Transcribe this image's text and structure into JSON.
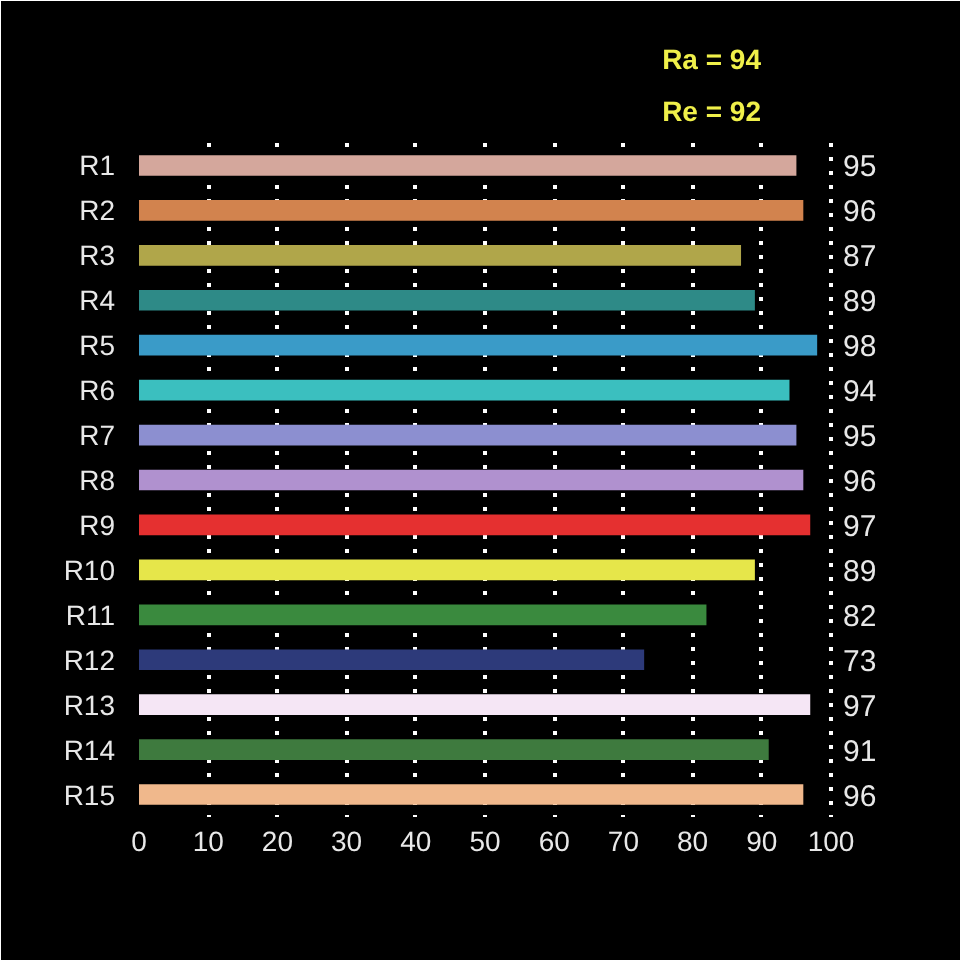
{
  "chart_data": {
    "type": "bar",
    "orientation": "horizontal",
    "categories": [
      "R1",
      "R2",
      "R3",
      "R4",
      "R5",
      "R6",
      "R7",
      "R8",
      "R9",
      "R10",
      "R11",
      "R12",
      "R13",
      "R14",
      "R15"
    ],
    "values": [
      95,
      96,
      87,
      89,
      98,
      94,
      95,
      96,
      97,
      89,
      82,
      73,
      97,
      91,
      96
    ],
    "colors": [
      "#d4a79c",
      "#d2834e",
      "#b0a64a",
      "#2e8a87",
      "#3a9bc8",
      "#3bbfbf",
      "#8c8fd0",
      "#b091cf",
      "#e53030",
      "#e6e64a",
      "#3a8a3e",
      "#2d3a7a",
      "#f5e6f5",
      "#3e7a3e",
      "#f0b88c"
    ],
    "xlim": [
      0,
      100
    ],
    "xticks": [
      0,
      10,
      20,
      30,
      40,
      50,
      60,
      70,
      80,
      90,
      100
    ],
    "grid": "x",
    "data_labels": true,
    "annotations": [
      "Ra = 94",
      "Re = 92"
    ]
  }
}
